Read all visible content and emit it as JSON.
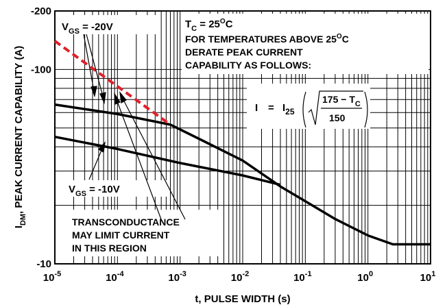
{
  "chart_data": {
    "type": "line",
    "ylabel": "I",
    "ylabel_sub": "DM",
    "ylabel_rest": ", PEAK CURRENT CAPABILITY (A)",
    "xlabel": "t, PULSE WIDTH (s)",
    "x_scale": "log",
    "y_scale": "log",
    "xlim": [
      1e-05,
      10
    ],
    "ylim": [
      10,
      200
    ],
    "grid": true,
    "x_ticks": [
      {
        "value": 1e-05,
        "base": "10",
        "exp": "-5"
      },
      {
        "value": 0.0001,
        "base": "10",
        "exp": "-4"
      },
      {
        "value": 0.001,
        "base": "10",
        "exp": "-3"
      },
      {
        "value": 0.01,
        "base": "10",
        "exp": "-2"
      },
      {
        "value": 0.1,
        "base": "10",
        "exp": "-1"
      },
      {
        "value": 1,
        "base": "10",
        "exp": "0"
      },
      {
        "value": 10,
        "base": "10",
        "exp": "1"
      }
    ],
    "y_ticks": [
      {
        "value": 200,
        "label": "-200"
      },
      {
        "value": 100,
        "label": "-100"
      },
      {
        "value": 10,
        "label": "-10"
      }
    ],
    "series": [
      {
        "label": "V_GS = -20V",
        "style": "solid",
        "color": "#000000",
        "points": [
          [
            1e-05,
            66
          ],
          [
            0.0001,
            59
          ],
          [
            0.0007,
            52
          ],
          [
            0.002,
            44
          ],
          [
            0.01,
            34
          ],
          [
            0.04,
            25
          ],
          [
            0.1,
            21
          ],
          [
            0.3,
            17
          ],
          [
            1,
            14
          ],
          [
            2.5,
            12.6
          ],
          [
            10,
            12.6
          ]
        ]
      },
      {
        "label": "V_GS = -10V",
        "style": "solid",
        "color": "#000000",
        "points": [
          [
            1e-05,
            45
          ],
          [
            0.0001,
            39
          ],
          [
            0.001,
            33
          ],
          [
            0.01,
            28.5
          ],
          [
            0.04,
            25.5
          ]
        ]
      },
      {
        "label": "transconductance limit",
        "style": "dashed",
        "color": "#e0202a",
        "points": [
          [
            1e-05,
            140
          ],
          [
            0.0007,
            52
          ]
        ]
      }
    ],
    "annotations": {
      "vgs20": {
        "pre": "V",
        "sub": "GS",
        "post": " = -20V"
      },
      "vgs10": {
        "pre": "V",
        "sub": "GS",
        "post": " = -10V"
      },
      "tc": {
        "pre": "T",
        "sub": "C",
        "mid": " = 25",
        "sup": "O",
        "post": "C"
      },
      "temp_line": {
        "pre": "FOR TEMPERATURES ABOVE 25",
        "sup": "O",
        "post": "C"
      },
      "derate1": "DERATE PEAK CURRENT",
      "derate2": "CAPABILITY AS FOLLOWS:",
      "formula": {
        "lhs": "I",
        "eq": "=",
        "i": "I",
        "i_sub": "25",
        "num_left": "175 − T",
        "num_sub": "C",
        "den": "150"
      },
      "trans1": "TRANSCONDUCTANCE",
      "trans2": "MAY LIMIT CURRENT",
      "trans3": "IN THIS REGION"
    }
  }
}
